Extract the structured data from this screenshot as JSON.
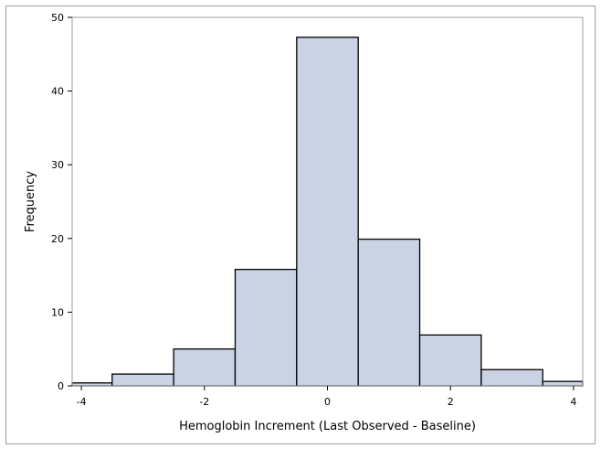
{
  "chart_data": {
    "type": "bar",
    "subtype": "histogram",
    "xlabel": "Hemoglobin Increment (Last Observed - Baseline)",
    "ylabel": "Frequency",
    "xlim": [
      -4.15,
      4.15
    ],
    "ylim": [
      0,
      50
    ],
    "xticks": [
      -4,
      -2,
      0,
      2,
      4
    ],
    "yticks": [
      0,
      10,
      20,
      30,
      40,
      50
    ],
    "bins": [
      {
        "x0": -4.15,
        "x1": -3.5,
        "value": 0.4
      },
      {
        "x0": -3.5,
        "x1": -2.5,
        "value": 1.6
      },
      {
        "x0": -2.5,
        "x1": -1.5,
        "value": 5.0
      },
      {
        "x0": -1.5,
        "x1": -0.5,
        "value": 15.8
      },
      {
        "x0": -0.5,
        "x1": 0.5,
        "value": 47.3
      },
      {
        "x0": 0.5,
        "x1": 1.5,
        "value": 19.9
      },
      {
        "x0": 1.5,
        "x1": 2.5,
        "value": 6.9
      },
      {
        "x0": 2.5,
        "x1": 3.5,
        "value": 2.2
      },
      {
        "x0": 3.5,
        "x1": 4.15,
        "value": 0.6
      }
    ],
    "colors": {
      "bar_fill": "#c9d3e4",
      "bar_stroke": "#000000",
      "frame": "#9c9c9c"
    },
    "grid": false,
    "legend": "none"
  }
}
